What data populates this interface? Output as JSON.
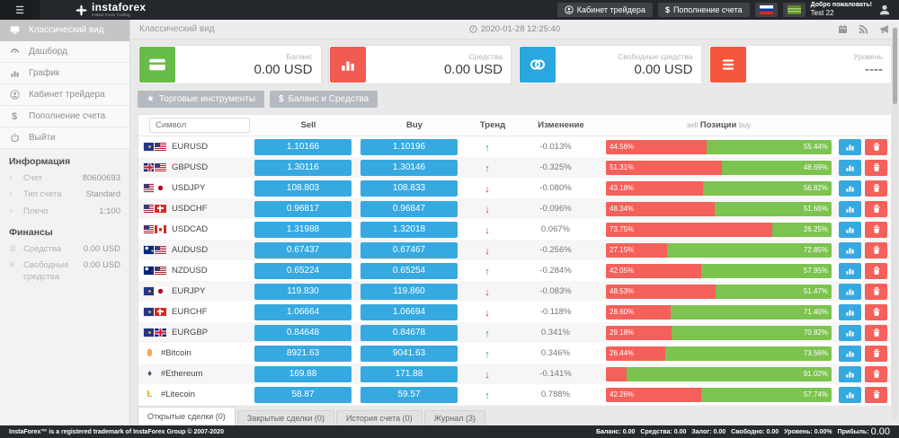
{
  "topbar": {
    "brand": "instaforex",
    "brand_sub": "Instant Forex Trading",
    "cabinet": "Кабинет трейдера",
    "deposit": "Пополнение счета",
    "welcome1": "Добро пожаловать!",
    "welcome2": "Test 22"
  },
  "sidebar": {
    "items": [
      {
        "label": "Классический вид"
      },
      {
        "label": "Дашборд"
      },
      {
        "label": "График"
      },
      {
        "label": "Кабинет трейдера"
      },
      {
        "label": "Пополнение счета"
      },
      {
        "label": "Выйти"
      }
    ],
    "info_title": "Информация",
    "info": [
      {
        "label": "Счет",
        "value": "80600693"
      },
      {
        "label": "Тип счета",
        "value": "Standard"
      },
      {
        "label": "Плечо",
        "value": "1:100"
      }
    ],
    "finance_title": "Финансы",
    "finance": [
      {
        "label": "Средства",
        "value": "0.00 USD"
      },
      {
        "label": "Свободные средства",
        "value": "0.00 USD"
      }
    ]
  },
  "main": {
    "title": "Классический вид",
    "timestamp": "2020-01-28 12:25:40",
    "cards": [
      {
        "label": "Баланс",
        "value": "0.00 USD",
        "color": "#68bd4a"
      },
      {
        "label": "Средства",
        "value": "0.00 USD",
        "color": "#f25b52"
      },
      {
        "label": "Свободные средства",
        "value": "0.00 USD",
        "color": "#29a8e0"
      },
      {
        "label": "Уровень",
        "value": "----",
        "color": "#f4573b"
      }
    ],
    "toolbar": [
      {
        "label": "Торговые инструменты"
      },
      {
        "label": "Баланс и Средства"
      }
    ]
  },
  "table": {
    "symbol_placeholder": "Символ",
    "col_sell": "Sell",
    "col_buy": "Buy",
    "col_trend": "Тренд",
    "col_change": "Изменение",
    "col_pos_sell": "sell",
    "col_pos": "Позиции",
    "col_pos_buy": "buy",
    "rows": [
      {
        "symbol": "EURUSD",
        "flag1": "eu",
        "flag2": "us",
        "sell": "1.10166",
        "buy": "1.10196",
        "trend": "up",
        "change": "-0.013%",
        "sell_pct": "44.56%",
        "buy_pct": "55.44%",
        "sell_width": 44.56
      },
      {
        "symbol": "GBPUSD",
        "flag1": "gb",
        "flag2": "us",
        "sell": "1.30116",
        "buy": "1.30146",
        "trend": "up",
        "change": "-0.325%",
        "sell_pct": "51.31%",
        "buy_pct": "48.69%",
        "sell_width": 51.31
      },
      {
        "symbol": "USDJPY",
        "flag1": "us",
        "flag2": "jp",
        "sell": "108.803",
        "buy": "108.833",
        "trend": "down",
        "change": "-0.080%",
        "sell_pct": "43.18%",
        "buy_pct": "56.82%",
        "sell_width": 43.18
      },
      {
        "symbol": "USDCHF",
        "flag1": "us",
        "flag2": "ch",
        "sell": "0.96817",
        "buy": "0.96847",
        "trend": "down",
        "change": "-0.096%",
        "sell_pct": "48.34%",
        "buy_pct": "51.66%",
        "sell_width": 48.34
      },
      {
        "symbol": "USDCAD",
        "flag1": "us",
        "flag2": "ca",
        "sell": "1.31988",
        "buy": "1.32018",
        "trend": "down",
        "change": "0.067%",
        "sell_pct": "73.75%",
        "buy_pct": "26.25%",
        "sell_width": 73.75
      },
      {
        "symbol": "AUDUSD",
        "flag1": "au",
        "flag2": "us",
        "sell": "0.67437",
        "buy": "0.67467",
        "trend": "down",
        "change": "-0.256%",
        "sell_pct": "27.15%",
        "buy_pct": "72.85%",
        "sell_width": 27.15
      },
      {
        "symbol": "NZDUSD",
        "flag1": "nz",
        "flag2": "us",
        "sell": "0.65224",
        "buy": "0.65254",
        "trend": "up",
        "change": "-0.284%",
        "sell_pct": "42.05%",
        "buy_pct": "57.95%",
        "sell_width": 42.05
      },
      {
        "symbol": "EURJPY",
        "flag1": "eu",
        "flag2": "jp",
        "sell": "119.830",
        "buy": "119.860",
        "trend": "down",
        "change": "-0.083%",
        "sell_pct": "48.53%",
        "buy_pct": "51.47%",
        "sell_width": 48.53
      },
      {
        "symbol": "EURCHF",
        "flag1": "eu",
        "flag2": "ch",
        "sell": "1.06664",
        "buy": "1.06694",
        "trend": "down",
        "change": "-0.118%",
        "sell_pct": "28.60%",
        "buy_pct": "71.40%",
        "sell_width": 28.6
      },
      {
        "symbol": "EURGBP",
        "flag1": "eu",
        "flag2": "gb",
        "sell": "0.84648",
        "buy": "0.84678",
        "trend": "up",
        "change": "0.341%",
        "sell_pct": "29.18%",
        "buy_pct": "70.82%",
        "sell_width": 29.18
      },
      {
        "symbol": "#Bitcoin",
        "crypto": "btc",
        "sell": "8921.63",
        "buy": "9041.63",
        "trend": "up",
        "change": "0.346%",
        "sell_pct": "26.44%",
        "buy_pct": "73.56%",
        "sell_width": 26.44
      },
      {
        "symbol": "#Ethereum",
        "crypto": "eth",
        "sell": "169.88",
        "buy": "171.88",
        "trend": "down",
        "change": "-0.141%",
        "sell_pct": "",
        "buy_pct": "91.02%",
        "sell_width": 8.98
      },
      {
        "symbol": "#Litecoin",
        "crypto": "ltc",
        "sell": "58.87",
        "buy": "59.57",
        "trend": "up",
        "change": "0.788%",
        "sell_pct": "42.26%",
        "buy_pct": "57.74%",
        "sell_width": 42.26
      },
      {
        "symbol": "",
        "partial": true,
        "sell": "",
        "buy": "",
        "trend": "",
        "change": "",
        "sell_pct": "",
        "buy_pct": "",
        "sell_width": 7
      }
    ]
  },
  "tabs": [
    {
      "label": "Открытые сделки (0)",
      "active": true
    },
    {
      "label": "Закрытые сделки (0)",
      "active": false
    },
    {
      "label": "История счета (0)",
      "active": false
    },
    {
      "label": "Журнал (3)",
      "active": false
    }
  ],
  "footer": {
    "copyright": "InstaForex™ is a registered trademark of InstaForex Group © 2007-2020",
    "stats": [
      {
        "label": "Баланс:",
        "value": "0.00"
      },
      {
        "label": "Средства:",
        "value": "0.00"
      },
      {
        "label": "Залог:",
        "value": "0.00"
      },
      {
        "label": "Свободно:",
        "value": "0.00"
      },
      {
        "label": "Уровень:",
        "value": "0.00%"
      },
      {
        "label": "Прибыль:",
        "value": "0.00",
        "big": true
      }
    ]
  }
}
